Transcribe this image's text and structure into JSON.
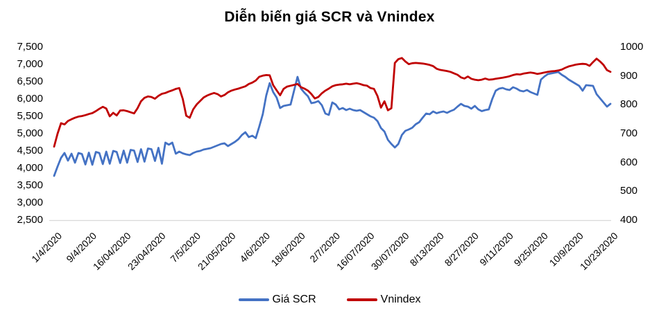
{
  "chart_data": {
    "type": "line",
    "title": "Diễn biến giá SCR và Vnindex",
    "x_labels": [
      "1/4/2020",
      "9/4/2020",
      "16/04/2020",
      "23/04/2020",
      "7/5/2020",
      "21/05/2020",
      "4/6/2020",
      "18/6/2020",
      "2/7/2020",
      "16/07/2020",
      "30/07/2020",
      "8/13/2020",
      "8/27/2020",
      "9/11/2020",
      "9/25/2020",
      "10/9/2020",
      "10/23/2020"
    ],
    "axes": {
      "left": {
        "min": 2500,
        "max": 7500,
        "ticks": [
          "7,500",
          "7,000",
          "6,500",
          "6,000",
          "5,500",
          "5,000",
          "4,500",
          "4,000",
          "3,500",
          "3,000",
          "2,500"
        ]
      },
      "right": {
        "min": 400,
        "max": 1000,
        "ticks": [
          "1000",
          "900",
          "800",
          "700",
          "600",
          "500",
          "400"
        ]
      }
    },
    "grid": "bottom-axis-only",
    "legend_position": "bottom-center",
    "series": [
      {
        "name": "Giá SCR",
        "color": "#4472C4",
        "axis": "left",
        "values": [
          3780,
          4050,
          4300,
          4440,
          4220,
          4420,
          4160,
          4440,
          4410,
          4110,
          4450,
          4100,
          4470,
          4440,
          4120,
          4480,
          4130,
          4500,
          4470,
          4150,
          4510,
          4160,
          4530,
          4510,
          4180,
          4550,
          4190,
          4570,
          4550,
          4210,
          4590,
          4130,
          4740,
          4680,
          4740,
          4420,
          4480,
          4430,
          4400,
          4380,
          4440,
          4480,
          4500,
          4540,
          4560,
          4580,
          4620,
          4660,
          4700,
          4720,
          4640,
          4700,
          4760,
          4840,
          4960,
          5040,
          4900,
          4940,
          4870,
          5200,
          5560,
          6100,
          6460,
          6200,
          6040,
          5740,
          5800,
          5820,
          5840,
          6240,
          6640,
          6300,
          6180,
          6080,
          5880,
          5900,
          5940,
          5820,
          5580,
          5540,
          5900,
          5840,
          5700,
          5740,
          5680,
          5720,
          5680,
          5660,
          5680,
          5620,
          5560,
          5500,
          5460,
          5360,
          5160,
          5060,
          4820,
          4700,
          4600,
          4700,
          4960,
          5080,
          5120,
          5170,
          5270,
          5330,
          5460,
          5580,
          5560,
          5640,
          5590,
          5620,
          5640,
          5600,
          5650,
          5690,
          5780,
          5860,
          5800,
          5780,
          5720,
          5800,
          5700,
          5650,
          5680,
          5700,
          6000,
          6240,
          6300,
          6320,
          6280,
          6260,
          6340,
          6300,
          6240,
          6220,
          6260,
          6200,
          6160,
          6120,
          6560,
          6650,
          6720,
          6740,
          6760,
          6780,
          6700,
          6640,
          6560,
          6500,
          6440,
          6380,
          6240,
          6400,
          6390,
          6380,
          6140,
          6020,
          5900,
          5780,
          5860
        ]
      },
      {
        "name": "Vnindex",
        "color": "#C00000",
        "axis": "right",
        "values": [
          655,
          700,
          736,
          732,
          744,
          750,
          755,
          759,
          761,
          764,
          768,
          771,
          778,
          786,
          793,
          787,
          760,
          772,
          763,
          780,
          781,
          778,
          774,
          770,
          788,
          812,
          824,
          829,
          827,
          821,
          831,
          838,
          841,
          846,
          850,
          855,
          858,
          820,
          762,
          755,
          784,
          801,
          813,
          825,
          832,
          837,
          841,
          837,
          829,
          834,
          843,
          849,
          853,
          856,
          860,
          864,
          872,
          877,
          884,
          897,
          901,
          903,
          902,
          868,
          850,
          833,
          855,
          863,
          866,
          869,
          872,
          861,
          856,
          849,
          837,
          822,
          827,
          840,
          849,
          856,
          864,
          868,
          870,
          871,
          873,
          871,
          873,
          875,
          872,
          868,
          866,
          858,
          855,
          830,
          790,
          812,
          781,
          788,
          945,
          958,
          962,
          950,
          941,
          944,
          945,
          944,
          943,
          941,
          938,
          934,
          925,
          921,
          919,
          917,
          914,
          909,
          904,
          895,
          891,
          898,
          890,
          887,
          885,
          887,
          891,
          887,
          888,
          890,
          892,
          894,
          896,
          899,
          903,
          906,
          905,
          908,
          910,
          912,
          910,
          907,
          909,
          912,
          914,
          916,
          917,
          919,
          922,
          928,
          933,
          936,
          939,
          941,
          942,
          941,
          935,
          948,
          960,
          950,
          938,
          920,
          914
        ]
      }
    ],
    "axis_line_color": "#D9D9D9",
    "text_color": "#000000"
  }
}
